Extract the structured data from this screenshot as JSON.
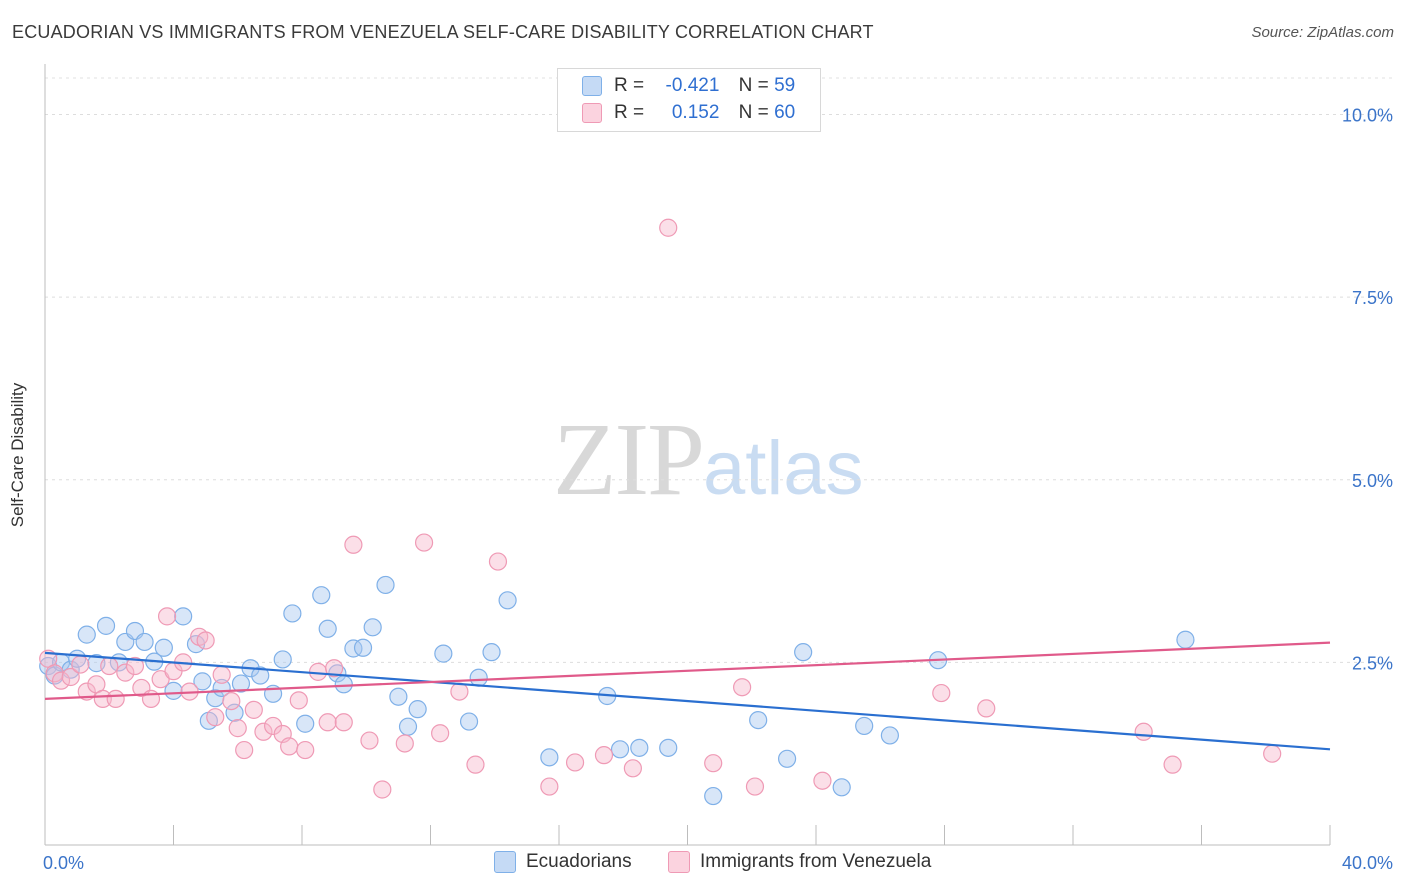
{
  "header": {
    "title": "ECUADORIAN VS IMMIGRANTS FROM VENEZUELA SELF-CARE DISABILITY CORRELATION CHART",
    "source": "Source: ZipAtlas.com"
  },
  "watermark": {
    "zip": "ZIP",
    "atlas": "atlas"
  },
  "legend": {
    "rows": [
      {
        "r_label": "R =",
        "r_value": "-0.421",
        "n_label": "N =",
        "n_value": "59",
        "color": "#a9c8f0"
      },
      {
        "r_label": "R =",
        "r_value": "0.152",
        "n_label": "N =",
        "n_value": "60",
        "color": "#f7b8cb"
      }
    ]
  },
  "chart_data": {
    "type": "scatter",
    "title": "ECUADORIAN VS IMMIGRANTS FROM VENEZUELA SELF-CARE DISABILITY CORRELATION CHART",
    "xlabel": "",
    "ylabel": "Self-Care Disability",
    "xlim": [
      0,
      40
    ],
    "ylim": [
      0,
      10.5
    ],
    "x_tick_labels": [
      "0.0%",
      "40.0%"
    ],
    "y_ticks": [
      2.5,
      5.0,
      7.5,
      10.0
    ],
    "y_tick_labels": [
      "2.5%",
      "5.0%",
      "7.5%",
      "10.0%"
    ],
    "grid": "horizontal dashed",
    "legend_position": "top-center",
    "series": [
      {
        "name": "Ecuadorians",
        "color": "#7fb0e8",
        "fill": "rgba(169,200,240,0.45)",
        "trend_color": "#2a6fd0",
        "trend": {
          "x": [
            0,
            40
          ],
          "y": [
            2.63,
            1.31
          ]
        },
        "x": [
          0.1,
          0.3,
          0.5,
          0.8,
          1.0,
          1.3,
          1.6,
          1.9,
          2.3,
          2.5,
          2.8,
          3.1,
          3.4,
          3.7,
          4.0,
          4.3,
          4.7,
          4.9,
          5.1,
          5.3,
          5.5,
          5.9,
          6.1,
          6.4,
          6.7,
          7.1,
          7.4,
          7.7,
          8.1,
          8.6,
          8.8,
          9.1,
          9.3,
          9.6,
          9.9,
          10.2,
          10.6,
          11.0,
          11.3,
          11.6,
          12.4,
          13.2,
          13.5,
          13.9,
          14.4,
          15.7,
          17.5,
          17.9,
          18.5,
          19.4,
          20.8,
          22.2,
          23.1,
          23.6,
          24.8,
          25.5,
          26.3,
          27.8,
          35.5
        ],
        "y": [
          2.45,
          2.32,
          2.5,
          2.4,
          2.55,
          2.88,
          2.49,
          3.0,
          2.5,
          2.78,
          2.93,
          2.78,
          2.51,
          2.7,
          2.11,
          3.13,
          2.75,
          2.24,
          1.7,
          2.01,
          2.15,
          1.81,
          2.21,
          2.42,
          2.32,
          2.07,
          2.54,
          3.17,
          1.66,
          3.42,
          2.96,
          2.35,
          2.2,
          2.69,
          2.7,
          2.98,
          3.56,
          2.03,
          1.62,
          1.86,
          2.62,
          1.69,
          2.29,
          2.64,
          3.35,
          1.2,
          2.04,
          1.31,
          1.33,
          1.33,
          0.67,
          1.71,
          1.18,
          2.64,
          0.79,
          1.63,
          1.5,
          2.53,
          2.81
        ]
      },
      {
        "name": "Immigrants from Venezuela",
        "color": "#ef9ab5",
        "fill": "rgba(247,184,203,0.45)",
        "trend_color": "#e05a8a",
        "trend": {
          "x": [
            0,
            40
          ],
          "y": [
            2.0,
            2.77
          ]
        },
        "x": [
          0.1,
          0.3,
          0.5,
          0.8,
          1.1,
          1.3,
          1.6,
          1.8,
          2.0,
          2.2,
          2.5,
          2.8,
          3.0,
          3.3,
          3.6,
          3.8,
          4.0,
          4.3,
          4.5,
          4.8,
          5.0,
          5.3,
          5.5,
          5.8,
          6.0,
          6.2,
          6.5,
          6.8,
          7.1,
          7.4,
          7.6,
          7.9,
          8.1,
          8.5,
          8.8,
          9.0,
          9.3,
          9.6,
          10.1,
          10.5,
          11.2,
          11.8,
          12.3,
          12.9,
          13.4,
          14.1,
          15.7,
          16.5,
          17.4,
          18.3,
          19.4,
          20.8,
          21.7,
          22.1,
          24.2,
          27.9,
          29.3,
          34.2,
          35.1,
          38.2
        ],
        "y": [
          2.55,
          2.35,
          2.25,
          2.3,
          2.47,
          2.1,
          2.2,
          2.0,
          2.45,
          2.0,
          2.36,
          2.45,
          2.15,
          2.0,
          2.27,
          3.13,
          2.38,
          2.5,
          2.1,
          2.85,
          2.8,
          1.75,
          2.33,
          1.97,
          1.6,
          1.3,
          1.85,
          1.55,
          1.63,
          1.52,
          1.35,
          1.98,
          1.3,
          2.37,
          1.68,
          2.42,
          1.68,
          4.11,
          1.43,
          0.76,
          1.39,
          4.14,
          1.53,
          2.1,
          1.1,
          3.88,
          0.8,
          1.13,
          1.23,
          1.05,
          8.45,
          1.12,
          2.16,
          0.8,
          0.88,
          2.08,
          1.87,
          1.55,
          1.1,
          1.25
        ]
      }
    ]
  },
  "bottom_legend": {
    "items": [
      {
        "label": "Ecuadorians",
        "color": "#a9c8f0"
      },
      {
        "label": "Immigrants from Venezuela",
        "color": "#f7b8cb"
      }
    ]
  }
}
